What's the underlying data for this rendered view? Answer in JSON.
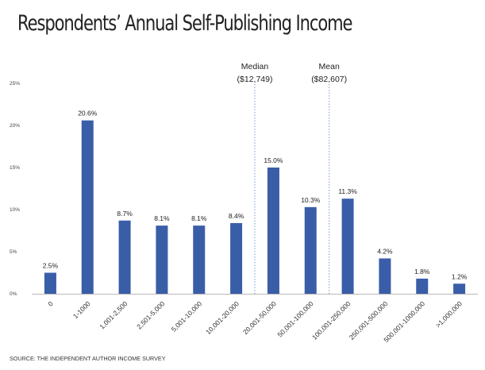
{
  "chart_data": {
    "type": "bar",
    "title": "Respondents’ Annual Self-Publishing Income",
    "source": "SOURCE: THE INDEPENDENT AUTHOR INCOME SURVEY",
    "categories": [
      "0",
      "1-1000",
      "1,001-2,500",
      "2,501-5,000",
      "5,001-10,000",
      "10,001-20,000",
      "20,001-50,000",
      "50,001-100,000",
      "100,001-250,000",
      "250,001-500,000",
      "500,001-1000,000",
      ">1,000,000"
    ],
    "values": [
      2.5,
      20.6,
      8.7,
      8.1,
      8.1,
      8.4,
      15.0,
      10.3,
      11.3,
      4.2,
      1.8,
      1.2
    ],
    "value_labels": [
      "2.5%",
      "20.6%",
      "8.7%",
      "8.1%",
      "8.1%",
      "8.4%",
      "15.0%",
      "10.3%",
      "11.3%",
      "4.2%",
      "1.8%",
      "1.2%"
    ],
    "ylim": [
      0,
      25
    ],
    "yticks": [
      0,
      5,
      10,
      15,
      20,
      25
    ],
    "ytick_labels": [
      "0%",
      "5%",
      "10%",
      "15%",
      "20%",
      "25%"
    ],
    "grid": false,
    "bar_color": "#3a5da8",
    "annotations": [
      {
        "label": "Median",
        "value": "($12,749)",
        "after_category_index": 5
      },
      {
        "label": "Mean",
        "value": "($82,607)",
        "after_category_index": 7
      }
    ]
  }
}
